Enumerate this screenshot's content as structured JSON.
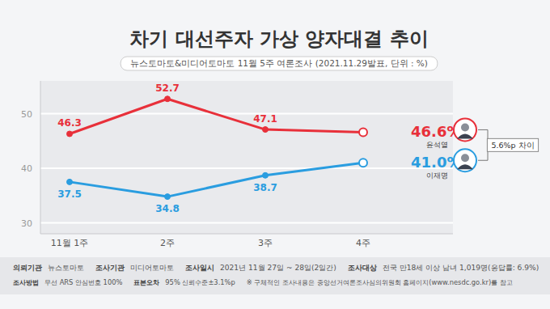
{
  "chart_data": {
    "type": "line",
    "title": "차기 대선주자 가상 양자대결 추이",
    "subtitle": "뉴스토마토&미디어토마토 11월 5주 여론조사 (2021.11.29발표, 단위 : %)",
    "categories": [
      "11월 1주",
      "2주",
      "3주",
      "4주"
    ],
    "series": [
      {
        "name": "윤석열",
        "color": "#e8303a",
        "values": [
          46.3,
          52.7,
          47.1,
          46.6
        ],
        "value_labels": [
          "46.3",
          "52.7",
          "47.1",
          "46.6%"
        ]
      },
      {
        "name": "이재명",
        "color": "#2a9de0",
        "values": [
          37.5,
          34.8,
          38.7,
          41.0
        ],
        "value_labels": [
          "37.5",
          "34.8",
          "38.7",
          "41.0%"
        ]
      }
    ],
    "ylim": [
      28,
      56
    ],
    "yticks": [
      30,
      40,
      50
    ],
    "grid": true,
    "data_labels": true,
    "marker": "circle",
    "annotation": "5.6%p 차이",
    "footer": [
      [
        {
          "label": "의뢰기관",
          "text": "뉴스토마토"
        },
        {
          "label": "조사기관",
          "text": "미디어토마토"
        },
        {
          "label": "조사일시",
          "text": "2021년 11월 27일 ~ 28일(2일간)"
        },
        {
          "label": "조사대상",
          "text": "전국 만18세 이상 남녀 1,019명(응답률: 6.9%)"
        }
      ],
      [
        {
          "label": "조사방법",
          "text": "무선 ARS 안심번호 100%"
        },
        {
          "label": "표본오차",
          "text": "95% 신뢰수준±3.1%p"
        },
        {
          "text": "※ 구체적인 조사내용은 중앙선거여론조사심의위원회 홈페이지(www.nesdc.go.kr)를 참고"
        }
      ]
    ]
  }
}
